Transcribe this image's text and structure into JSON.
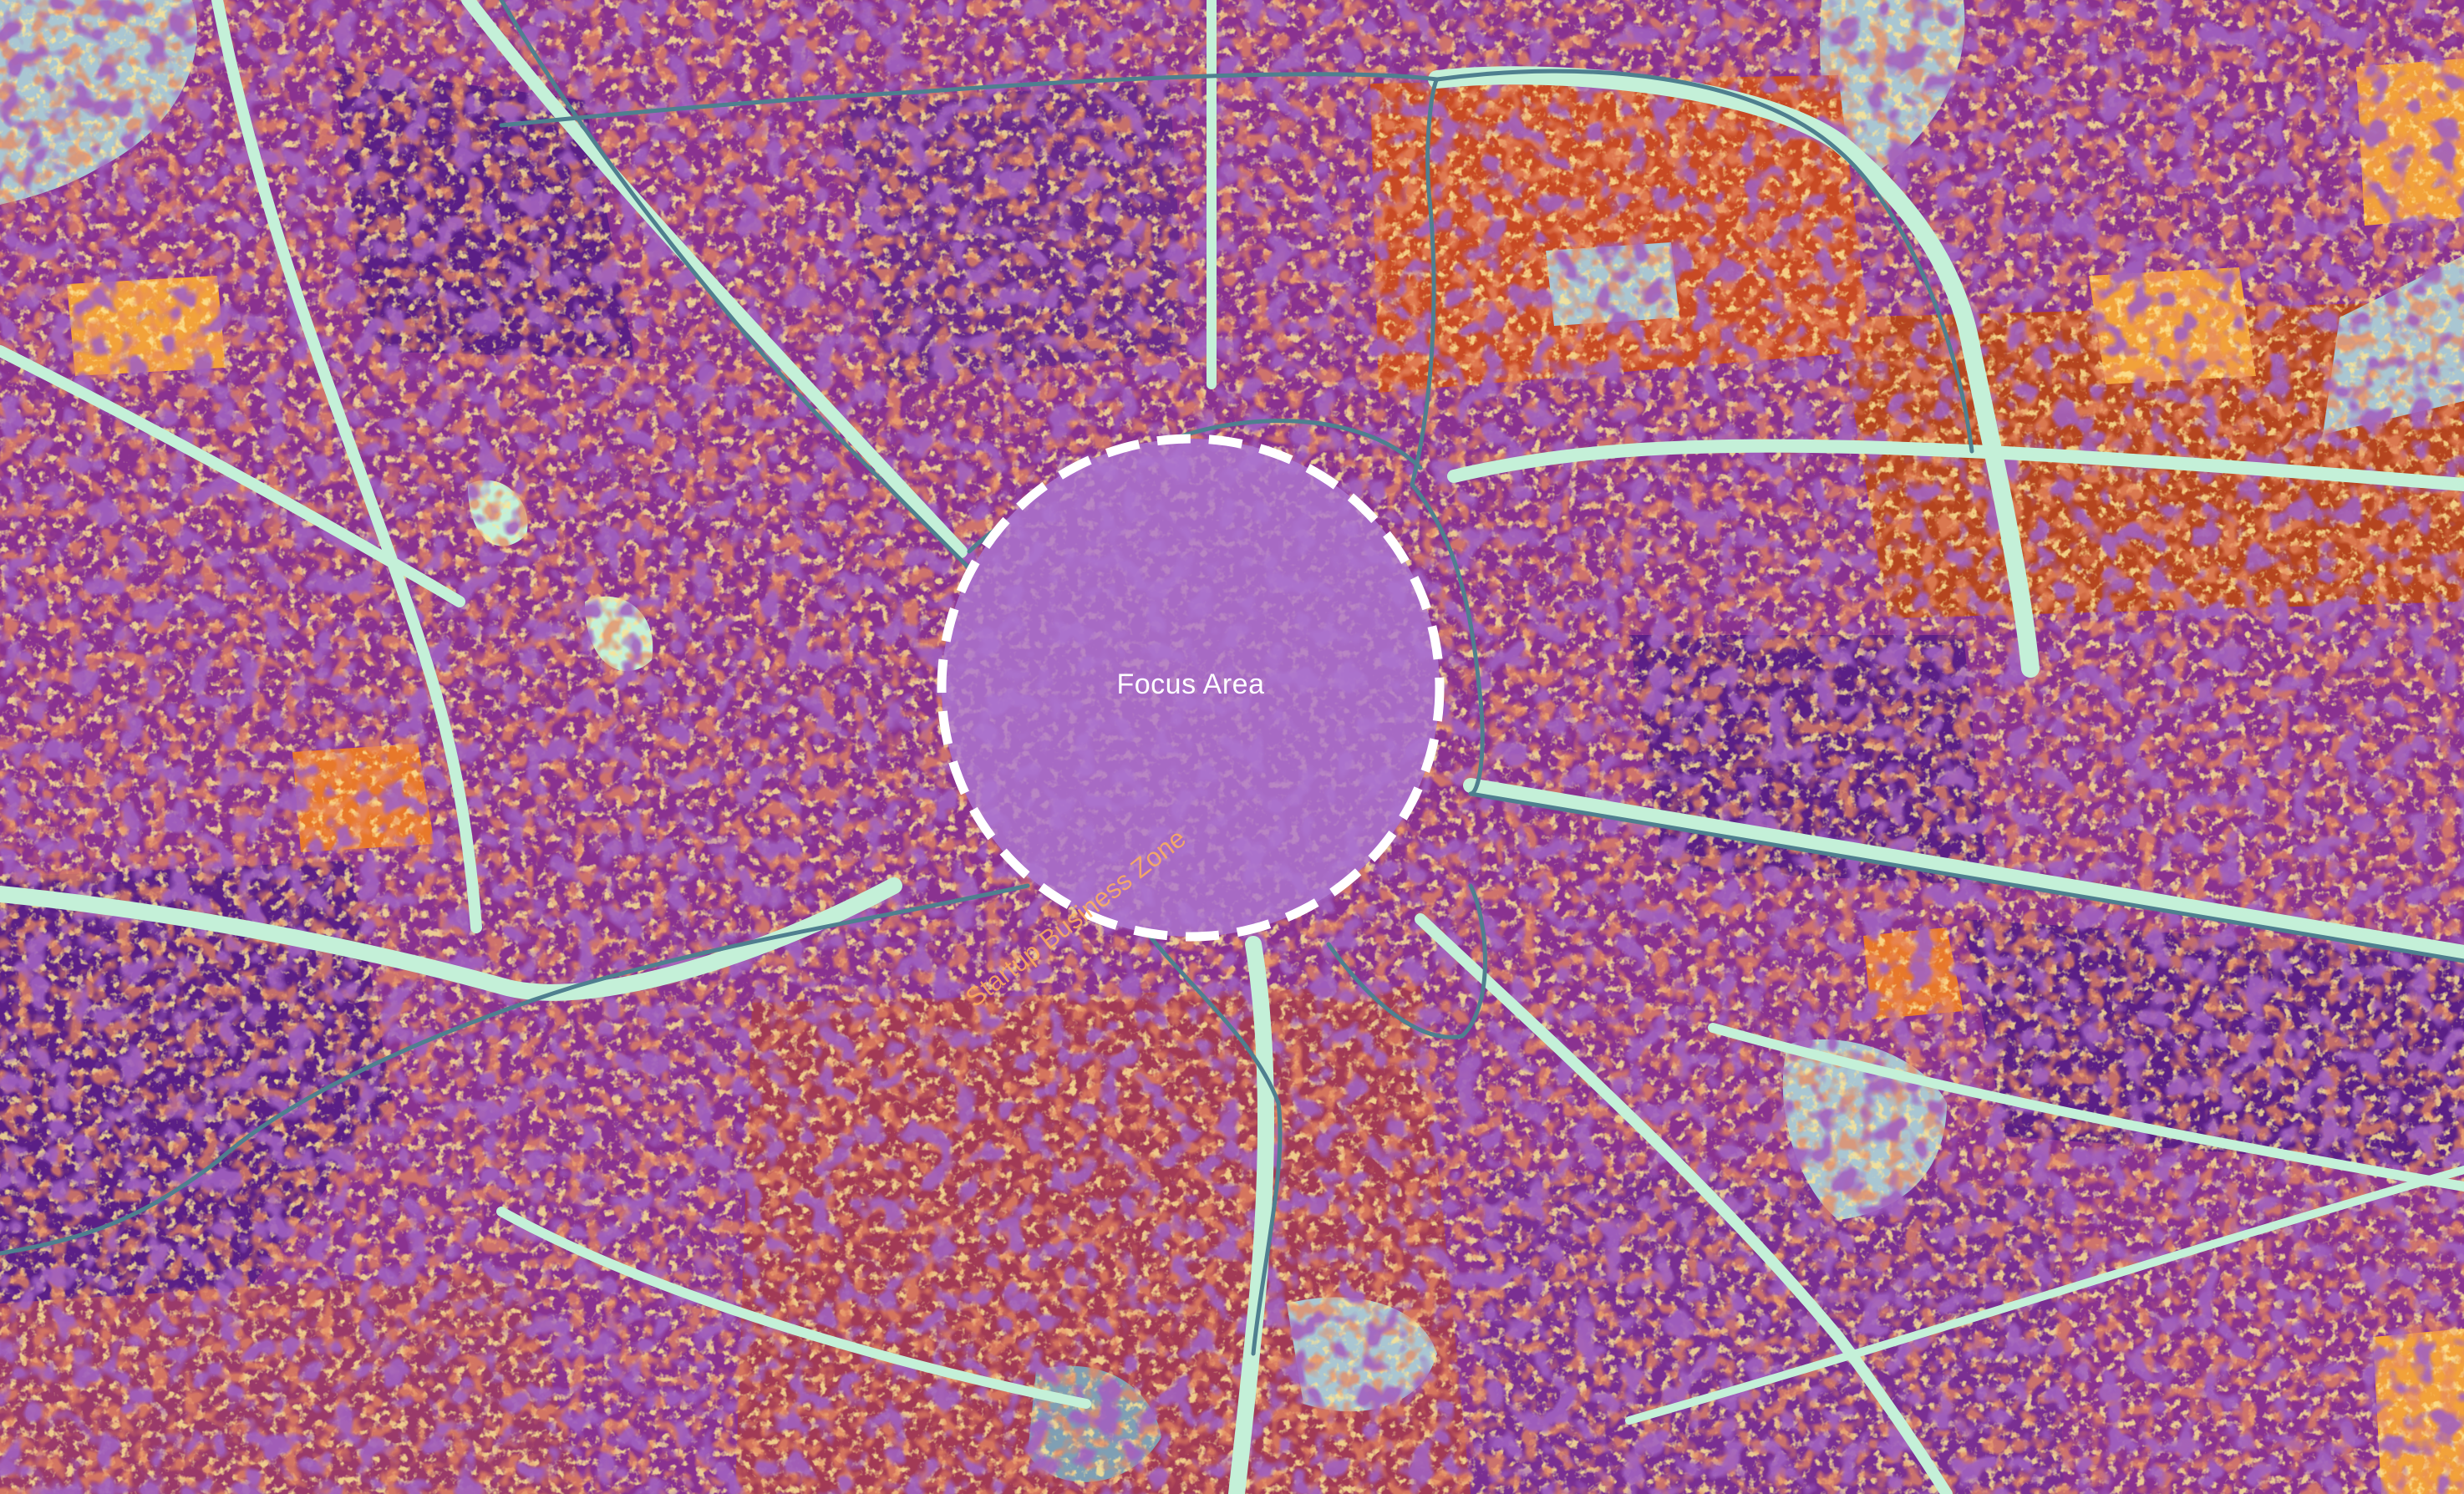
{
  "map": {
    "focus_label": "Focus Area",
    "street_label": "Startup Business Zone",
    "palette": {
      "deep_purple": "#5b1f86",
      "purple": "#7a2f92",
      "red_orange": "#c8421f",
      "orange": "#e8782a",
      "amber": "#f2a23a",
      "yellow": "#f7e36a",
      "pale_cyan": "#c4f0d8",
      "light_blue": "#a9c6d2",
      "steel_blue": "#7f9fb4",
      "road_line": "#4f7f8f",
      "focus_fill": "#b07ad2",
      "focus_stroke": "#ffffff"
    }
  }
}
